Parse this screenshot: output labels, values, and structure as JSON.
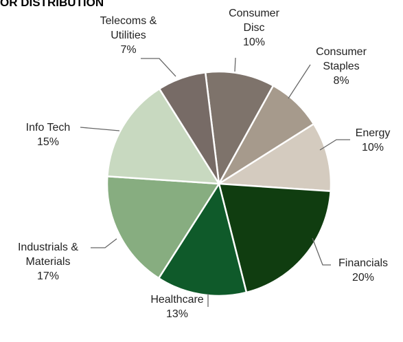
{
  "header": {
    "title": "OR DISTRIBUTION"
  },
  "chart_data": {
    "type": "pie",
    "title": "OR DISTRIBUTION",
    "slices": [
      {
        "name": "Consumer Disc",
        "label_lines": [
          "Consumer",
          "Disc"
        ],
        "value": 10,
        "value_label": "10%",
        "color": "#7e736b"
      },
      {
        "name": "Consumer Staples",
        "label_lines": [
          "Consumer",
          "Staples"
        ],
        "value": 8,
        "value_label": "8%",
        "color": "#a69a8c"
      },
      {
        "name": "Energy",
        "label_lines": [
          "Energy"
        ],
        "value": 10,
        "value_label": "10%",
        "color": "#d4cbbf"
      },
      {
        "name": "Financials",
        "label_lines": [
          "Financials"
        ],
        "value": 20,
        "value_label": "20%",
        "color": "#103d10"
      },
      {
        "name": "Healthcare",
        "label_lines": [
          "Healthcare"
        ],
        "value": 13,
        "value_label": "13%",
        "color": "#0f5a2a"
      },
      {
        "name": "Industrials & Materials",
        "label_lines": [
          "Industrials &",
          "Materials"
        ],
        "value": 17,
        "value_label": "17%",
        "color": "#87ad80"
      },
      {
        "name": "Info Tech",
        "label_lines": [
          "Info Tech"
        ],
        "value": 15,
        "value_label": "15%",
        "color": "#c8d9c0"
      },
      {
        "name": "Telecoms & Utilities",
        "label_lines": [
          "Telecoms &",
          "Utilities"
        ],
        "value": 7,
        "value_label": "7%",
        "color": "#776b66"
      }
    ]
  }
}
